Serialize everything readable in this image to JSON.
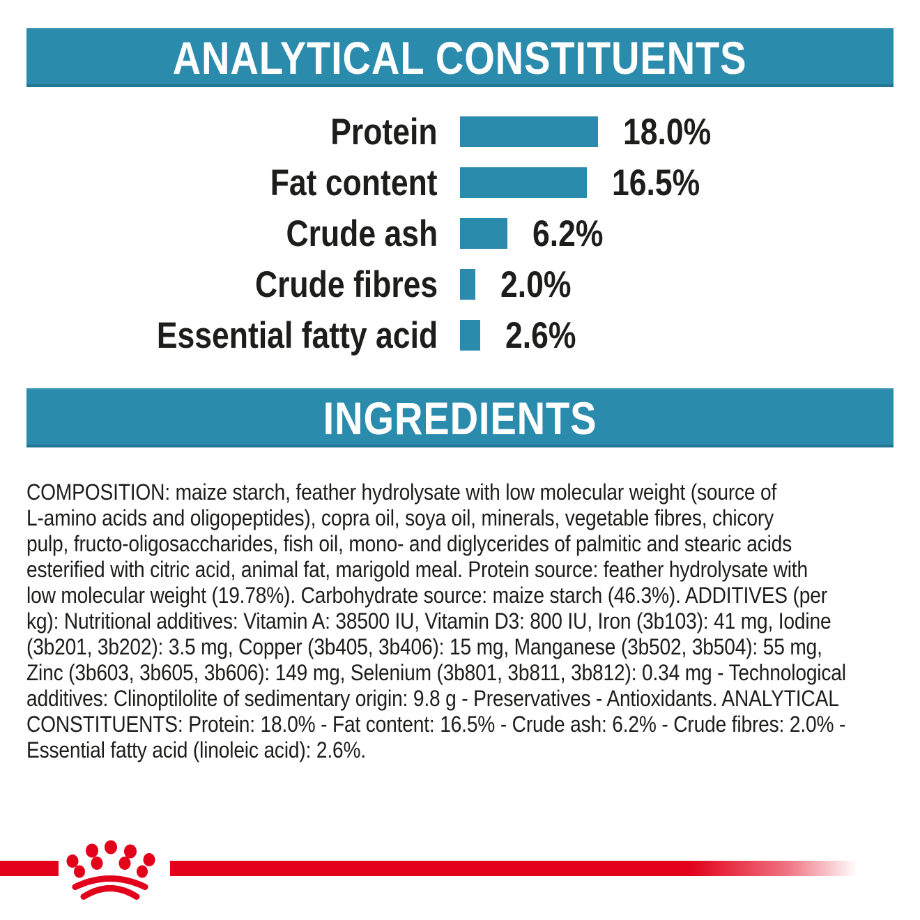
{
  "colors": {
    "teal": "#2b8bac",
    "red": "#e2001a",
    "text": "#1d1d1b"
  },
  "analytical_banner": {
    "title": "ANALYTICAL CONSTITUENTS"
  },
  "ingredients_banner": {
    "title": "INGREDIENTS"
  },
  "chart_data": {
    "type": "bar",
    "orientation": "horizontal",
    "title": "ANALYTICAL CONSTITUENTS",
    "categories": [
      "Protein",
      "Fat content",
      "Crude ash",
      "Crude fibres",
      "Essential fatty acid"
    ],
    "values": [
      18.0,
      16.5,
      6.2,
      2.0,
      2.6
    ],
    "value_labels": [
      "18.0%",
      "16.5%",
      "6.2%",
      "2.0%",
      "2.6%"
    ],
    "unit": "%",
    "xlim": [
      0,
      20
    ],
    "grid": false,
    "legend": false,
    "bar_color": "#2b8bac"
  },
  "ingredients_text": {
    "lines": [
      "COMPOSITION: maize starch, feather hydrolysate with low molecular weight (source of",
      "L-amino acids and oligopeptides), copra oil, soya oil, minerals, vegetable fibres, chicory",
      "pulp, fructo-oligosaccharides, fish oil, mono- and diglycerides of palmitic and stearic acids",
      "esterified with citric acid, animal fat, marigold meal. Protein source: feather hydrolysate with",
      "low molecular weight (19.78%). Carbohydrate source: maize starch (46.3%). ADDITIVES (per",
      "kg): Nutritional additives: Vitamin A: 38500 IU, Vitamin D3: 800 IU, Iron (3b103): 41 mg, Iodine",
      "(3b201, 3b202): 3.5 mg, Copper (3b405, 3b406): 15 mg, Manganese (3b502, 3b504): 55 mg,",
      "Zinc (3b603, 3b605, 3b606): 149 mg, Selenium (3b801, 3b811, 3b812): 0.34 mg - Technological",
      "additives: Clinoptilolite of sedimentary origin: 9.8 g - Preservatives - Antioxidants. ANALYTICAL",
      "CONSTITUENTS: Protein: 18.0% - Fat content: 16.5% - Crude ash: 6.2% - Crude fibres: 2.0% -",
      "Essential fatty acid (linoleic acid): 2.6%."
    ]
  },
  "footer": {
    "logo": "royal-canin-crown"
  }
}
